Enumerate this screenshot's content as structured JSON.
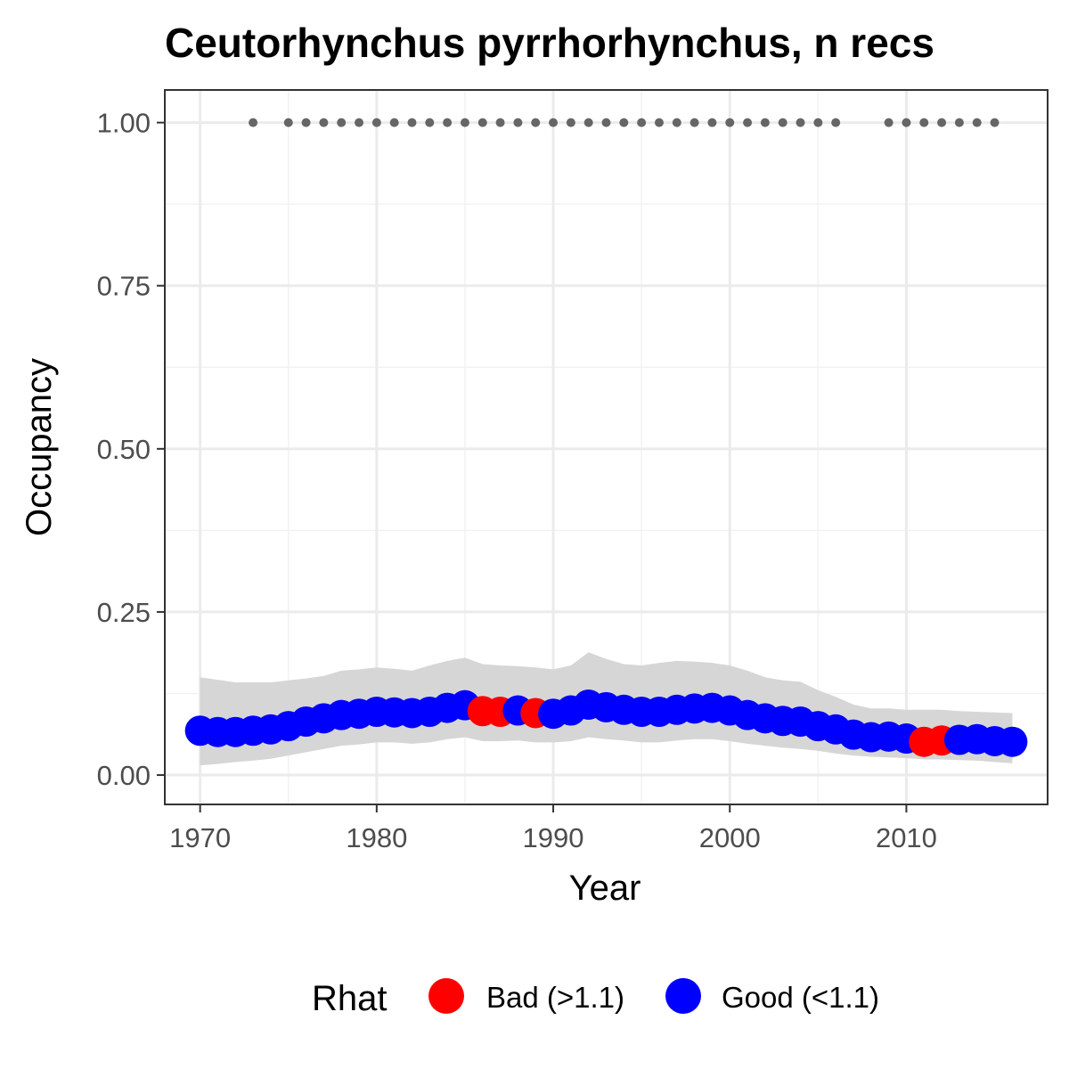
{
  "chart_data": {
    "type": "scatter",
    "title": "Ceutorhynchus pyrrhorhynchus, n recs",
    "xlabel": "Year",
    "ylabel": "Occupancy",
    "xlim": [
      1968,
      2018
    ],
    "ylim": [
      -0.045,
      1.05
    ],
    "x_ticks": [
      1970,
      1980,
      1990,
      2000,
      2010
    ],
    "y_ticks": [
      0.0,
      0.25,
      0.5,
      0.75,
      1.0
    ],
    "y_tick_labels": [
      "0.00",
      "0.25",
      "0.50",
      "0.75",
      "1.00"
    ],
    "grid": true,
    "legend": {
      "title": "Rhat",
      "position": "bottom",
      "entries": [
        {
          "key": "bad",
          "label": "Bad (>1.1)",
          "color": "#ff0000"
        },
        {
          "key": "good",
          "label": "Good (<1.1)",
          "color": "#0000ff"
        }
      ]
    },
    "colors": {
      "bad": "#ff0000",
      "good": "#0000ff",
      "ribbon": "#d6d6d6",
      "record_points": "#666666"
    },
    "series": [
      {
        "name": "Occupancy",
        "x": [
          1970,
          1971,
          1972,
          1973,
          1974,
          1975,
          1976,
          1977,
          1978,
          1979,
          1980,
          1981,
          1982,
          1983,
          1984,
          1985,
          1986,
          1987,
          1988,
          1989,
          1990,
          1991,
          1992,
          1993,
          1994,
          1995,
          1996,
          1997,
          1998,
          1999,
          2000,
          2001,
          2002,
          2003,
          2004,
          2005,
          2006,
          2007,
          2008,
          2009,
          2010,
          2011,
          2012,
          2013,
          2014,
          2015,
          2016
        ],
        "y": [
          0.068,
          0.066,
          0.066,
          0.068,
          0.07,
          0.075,
          0.082,
          0.087,
          0.092,
          0.094,
          0.097,
          0.096,
          0.095,
          0.097,
          0.103,
          0.107,
          0.098,
          0.097,
          0.099,
          0.095,
          0.094,
          0.099,
          0.108,
          0.104,
          0.1,
          0.097,
          0.097,
          0.1,
          0.102,
          0.103,
          0.099,
          0.092,
          0.087,
          0.083,
          0.082,
          0.075,
          0.07,
          0.062,
          0.058,
          0.059,
          0.056,
          0.051,
          0.053,
          0.054,
          0.055,
          0.052,
          0.051
        ],
        "lower": [
          0.015,
          0.017,
          0.02,
          0.022,
          0.025,
          0.03,
          0.035,
          0.04,
          0.045,
          0.047,
          0.05,
          0.05,
          0.048,
          0.05,
          0.055,
          0.058,
          0.052,
          0.052,
          0.053,
          0.05,
          0.05,
          0.052,
          0.058,
          0.055,
          0.053,
          0.05,
          0.05,
          0.053,
          0.055,
          0.055,
          0.052,
          0.048,
          0.045,
          0.042,
          0.04,
          0.037,
          0.033,
          0.03,
          0.028,
          0.027,
          0.026,
          0.024,
          0.024,
          0.023,
          0.022,
          0.02,
          0.018
        ],
        "upper": [
          0.15,
          0.146,
          0.142,
          0.142,
          0.142,
          0.145,
          0.148,
          0.152,
          0.16,
          0.162,
          0.165,
          0.163,
          0.16,
          0.168,
          0.175,
          0.18,
          0.17,
          0.168,
          0.167,
          0.165,
          0.162,
          0.168,
          0.188,
          0.178,
          0.17,
          0.168,
          0.172,
          0.175,
          0.174,
          0.172,
          0.168,
          0.16,
          0.15,
          0.145,
          0.143,
          0.13,
          0.12,
          0.108,
          0.102,
          0.102,
          0.1,
          0.1,
          0.1,
          0.098,
          0.097,
          0.096,
          0.095
        ],
        "rhat": [
          "good",
          "good",
          "good",
          "good",
          "good",
          "good",
          "good",
          "good",
          "good",
          "good",
          "good",
          "good",
          "good",
          "good",
          "good",
          "good",
          "bad",
          "bad",
          "good",
          "bad",
          "good",
          "good",
          "good",
          "good",
          "good",
          "good",
          "good",
          "good",
          "good",
          "good",
          "good",
          "good",
          "good",
          "good",
          "good",
          "good",
          "good",
          "good",
          "good",
          "good",
          "good",
          "bad",
          "bad",
          "good",
          "good",
          "good",
          "good"
        ]
      },
      {
        "name": "Records",
        "x": [
          1973,
          1975,
          1976,
          1977,
          1978,
          1979,
          1980,
          1981,
          1982,
          1983,
          1984,
          1985,
          1986,
          1987,
          1988,
          1989,
          1990,
          1991,
          1992,
          1993,
          1994,
          1995,
          1996,
          1997,
          1998,
          1999,
          2000,
          2001,
          2002,
          2003,
          2004,
          2005,
          2006,
          2009,
          2010,
          2011,
          2012,
          2013,
          2014,
          2015
        ],
        "y": [
          1,
          1,
          1,
          1,
          1,
          1,
          1,
          1,
          1,
          1,
          1,
          1,
          1,
          1,
          1,
          1,
          1,
          1,
          1,
          1,
          1,
          1,
          1,
          1,
          1,
          1,
          1,
          1,
          1,
          1,
          1,
          1,
          1,
          1,
          1,
          1,
          1,
          1,
          1,
          1
        ]
      }
    ]
  }
}
